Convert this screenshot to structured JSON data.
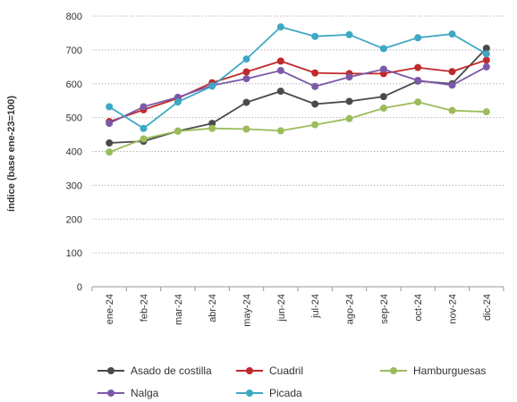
{
  "chart_data": {
    "type": "line",
    "title": "",
    "xlabel": "",
    "ylabel": "índice (base ene-23=100)",
    "categories": [
      "ene-24",
      "feb-24",
      "mar-24",
      "abr-24",
      "may-24",
      "jun-24",
      "jul-24",
      "ago-24",
      "sep-24",
      "oct-24",
      "nov-24",
      "dic-24"
    ],
    "ylim": [
      0,
      800
    ],
    "yticks": [
      0,
      100,
      200,
      300,
      400,
      500,
      600,
      700,
      800
    ],
    "grid": "horizontal dotted",
    "legend_position": "bottom",
    "series": [
      {
        "name": "Asado de costilla",
        "color": "#4a4a4a",
        "values": [
          425,
          430,
          460,
          483,
          545,
          578,
          540,
          548,
          562,
          608,
          600,
          705
        ]
      },
      {
        "name": "Cuadril",
        "color": "#c0292b",
        "values": [
          488,
          523,
          557,
          603,
          635,
          667,
          632,
          630,
          630,
          648,
          636,
          670
        ]
      },
      {
        "name": "Hamburguesas",
        "color": "#9cbc5c",
        "values": [
          398,
          437,
          460,
          468,
          466,
          461,
          479,
          497,
          528,
          546,
          521,
          517
        ]
      },
      {
        "name": "Nalga",
        "color": "#7c59a8",
        "values": [
          483,
          532,
          560,
          595,
          615,
          639,
          592,
          620,
          643,
          610,
          596,
          650
        ]
      },
      {
        "name": "Picada",
        "color": "#3ea8c4",
        "values": [
          532,
          468,
          546,
          593,
          673,
          768,
          740,
          745,
          704,
          736,
          747,
          688
        ]
      }
    ]
  }
}
